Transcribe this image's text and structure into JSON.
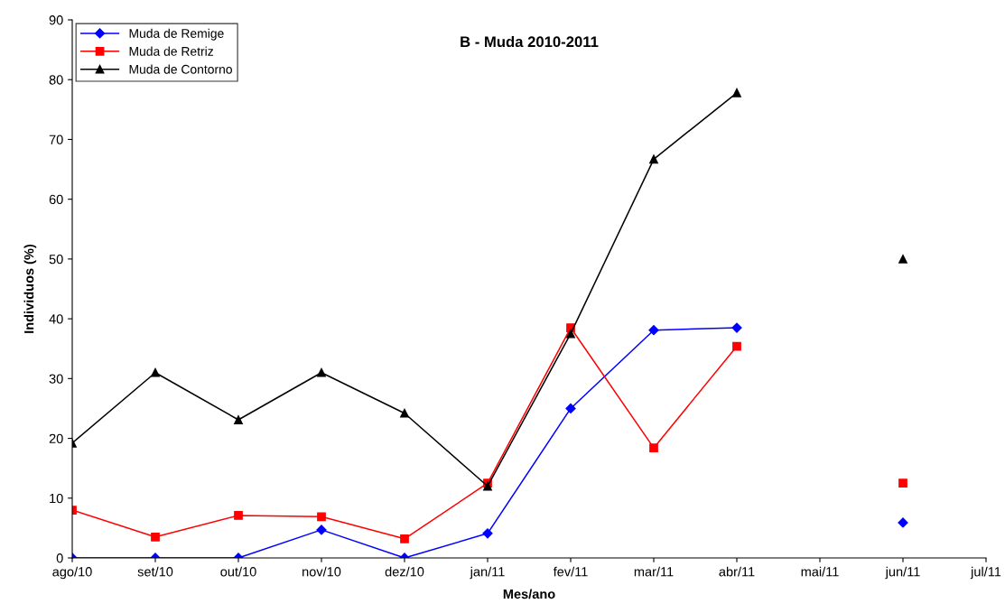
{
  "chart_data": {
    "type": "line",
    "title": "B - Muda 2010-2011",
    "xlabel": "Mes/ano",
    "ylabel": "Individuos (%)",
    "categories": [
      "ago/10",
      "set/10",
      "out/10",
      "nov/10",
      "dez/10",
      "jan/11",
      "fev/11",
      "mar/11",
      "abr/11",
      "mai/11",
      "jun/11",
      "jul/11"
    ],
    "series": [
      {
        "name": "Muda de Remige",
        "color": "#0000ff",
        "marker": "diamond",
        "values": [
          0,
          0,
          0,
          4.7,
          0,
          4.1,
          25.0,
          38.1,
          38.5,
          null,
          5.9,
          null
        ]
      },
      {
        "name": "Muda de Retriz",
        "color": "#ff0000",
        "marker": "square",
        "values": [
          8.0,
          3.5,
          7.1,
          6.9,
          3.2,
          12.5,
          38.5,
          18.4,
          35.4,
          null,
          12.5,
          null
        ]
      },
      {
        "name": "Muda de Contorno",
        "color": "#000000",
        "marker": "triangle",
        "values": [
          19.2,
          31.0,
          23.1,
          31.0,
          24.2,
          12.0,
          37.5,
          66.7,
          77.8,
          null,
          50.0,
          null
        ]
      }
    ],
    "ylim": [
      0,
      90
    ],
    "yticks": [
      0,
      10,
      20,
      30,
      40,
      50,
      60,
      70,
      80,
      90
    ],
    "grid": false,
    "legend": "top left",
    "line_style": "solid"
  }
}
